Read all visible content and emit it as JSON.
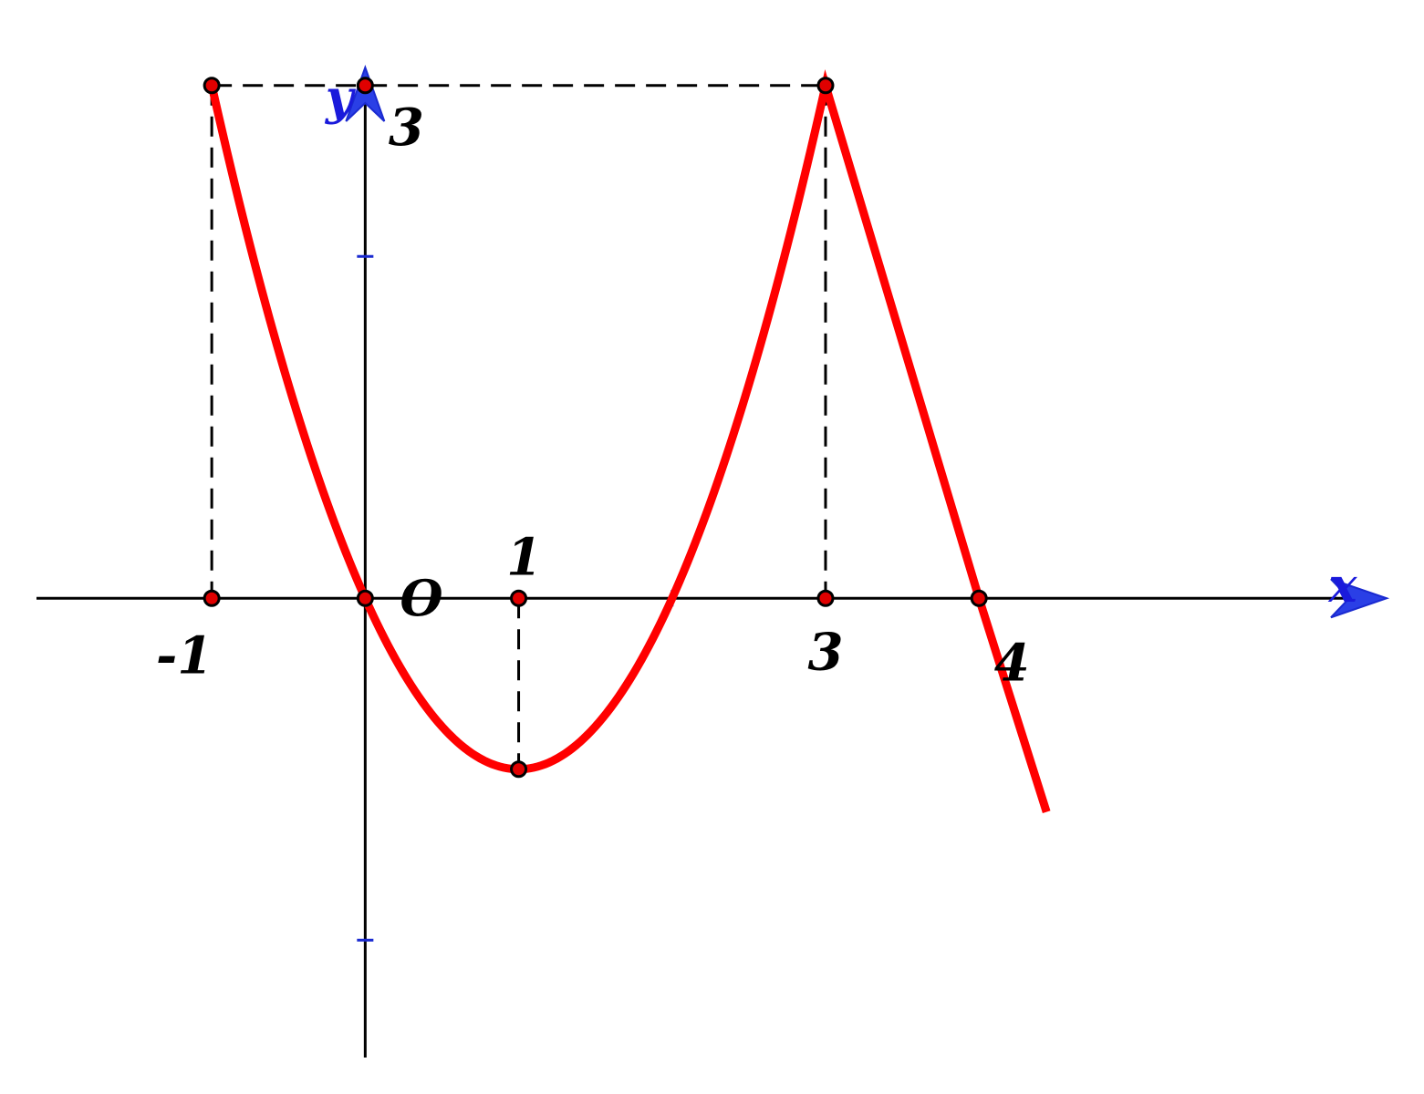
{
  "chart_data": {
    "type": "line",
    "xlim": [
      -2.38,
      6.9
    ],
    "ylim": [
      -2.9,
      3.5
    ],
    "colors": {
      "curve": "#ff0000",
      "axes": "#000000",
      "axis_label": "#1a1adb",
      "arrow": "#2a3fe6",
      "point": "#e00000",
      "guide": "#000000"
    },
    "axis_labels": {
      "x": "x",
      "y": "y"
    },
    "origin_label": "O",
    "series": [
      {
        "points": [
          [
            -1,
            3
          ],
          [
            0,
            0
          ],
          [
            1,
            -1
          ],
          [
            2,
            0
          ],
          [
            3,
            3
          ],
          [
            4,
            0
          ],
          [
            4.44,
            -1.25
          ]
        ]
      }
    ],
    "marked_points": [
      [
        -1,
        3
      ],
      [
        0,
        3
      ],
      [
        -1,
        0
      ],
      [
        0,
        0
      ],
      [
        1,
        0
      ],
      [
        1,
        -1
      ],
      [
        3,
        3
      ],
      [
        3,
        0
      ],
      [
        4,
        0
      ]
    ],
    "guides": [
      {
        "from": [
          -1,
          3
        ],
        "to": [
          3,
          3
        ]
      },
      {
        "from": [
          -1,
          3
        ],
        "to": [
          -1,
          0
        ]
      },
      {
        "from": [
          3,
          3
        ],
        "to": [
          3,
          0
        ]
      },
      {
        "from": [
          1,
          0
        ],
        "to": [
          1,
          -1
        ]
      }
    ],
    "minor_ticks": {
      "x": [
        2
      ],
      "y": [
        2,
        -2
      ]
    },
    "tick_labels": [
      {
        "text": "-1",
        "x": -1,
        "y": 0,
        "pos": "below-left"
      },
      {
        "text": "1",
        "x": 1,
        "y": 0,
        "pos": "above"
      },
      {
        "text": "3",
        "x": 3,
        "y": 0,
        "pos": "below"
      },
      {
        "text": "4",
        "x": 4,
        "y": 0,
        "pos": "below-right"
      },
      {
        "text": "3",
        "x": 0,
        "y": 3,
        "pos": "below-right"
      }
    ]
  }
}
